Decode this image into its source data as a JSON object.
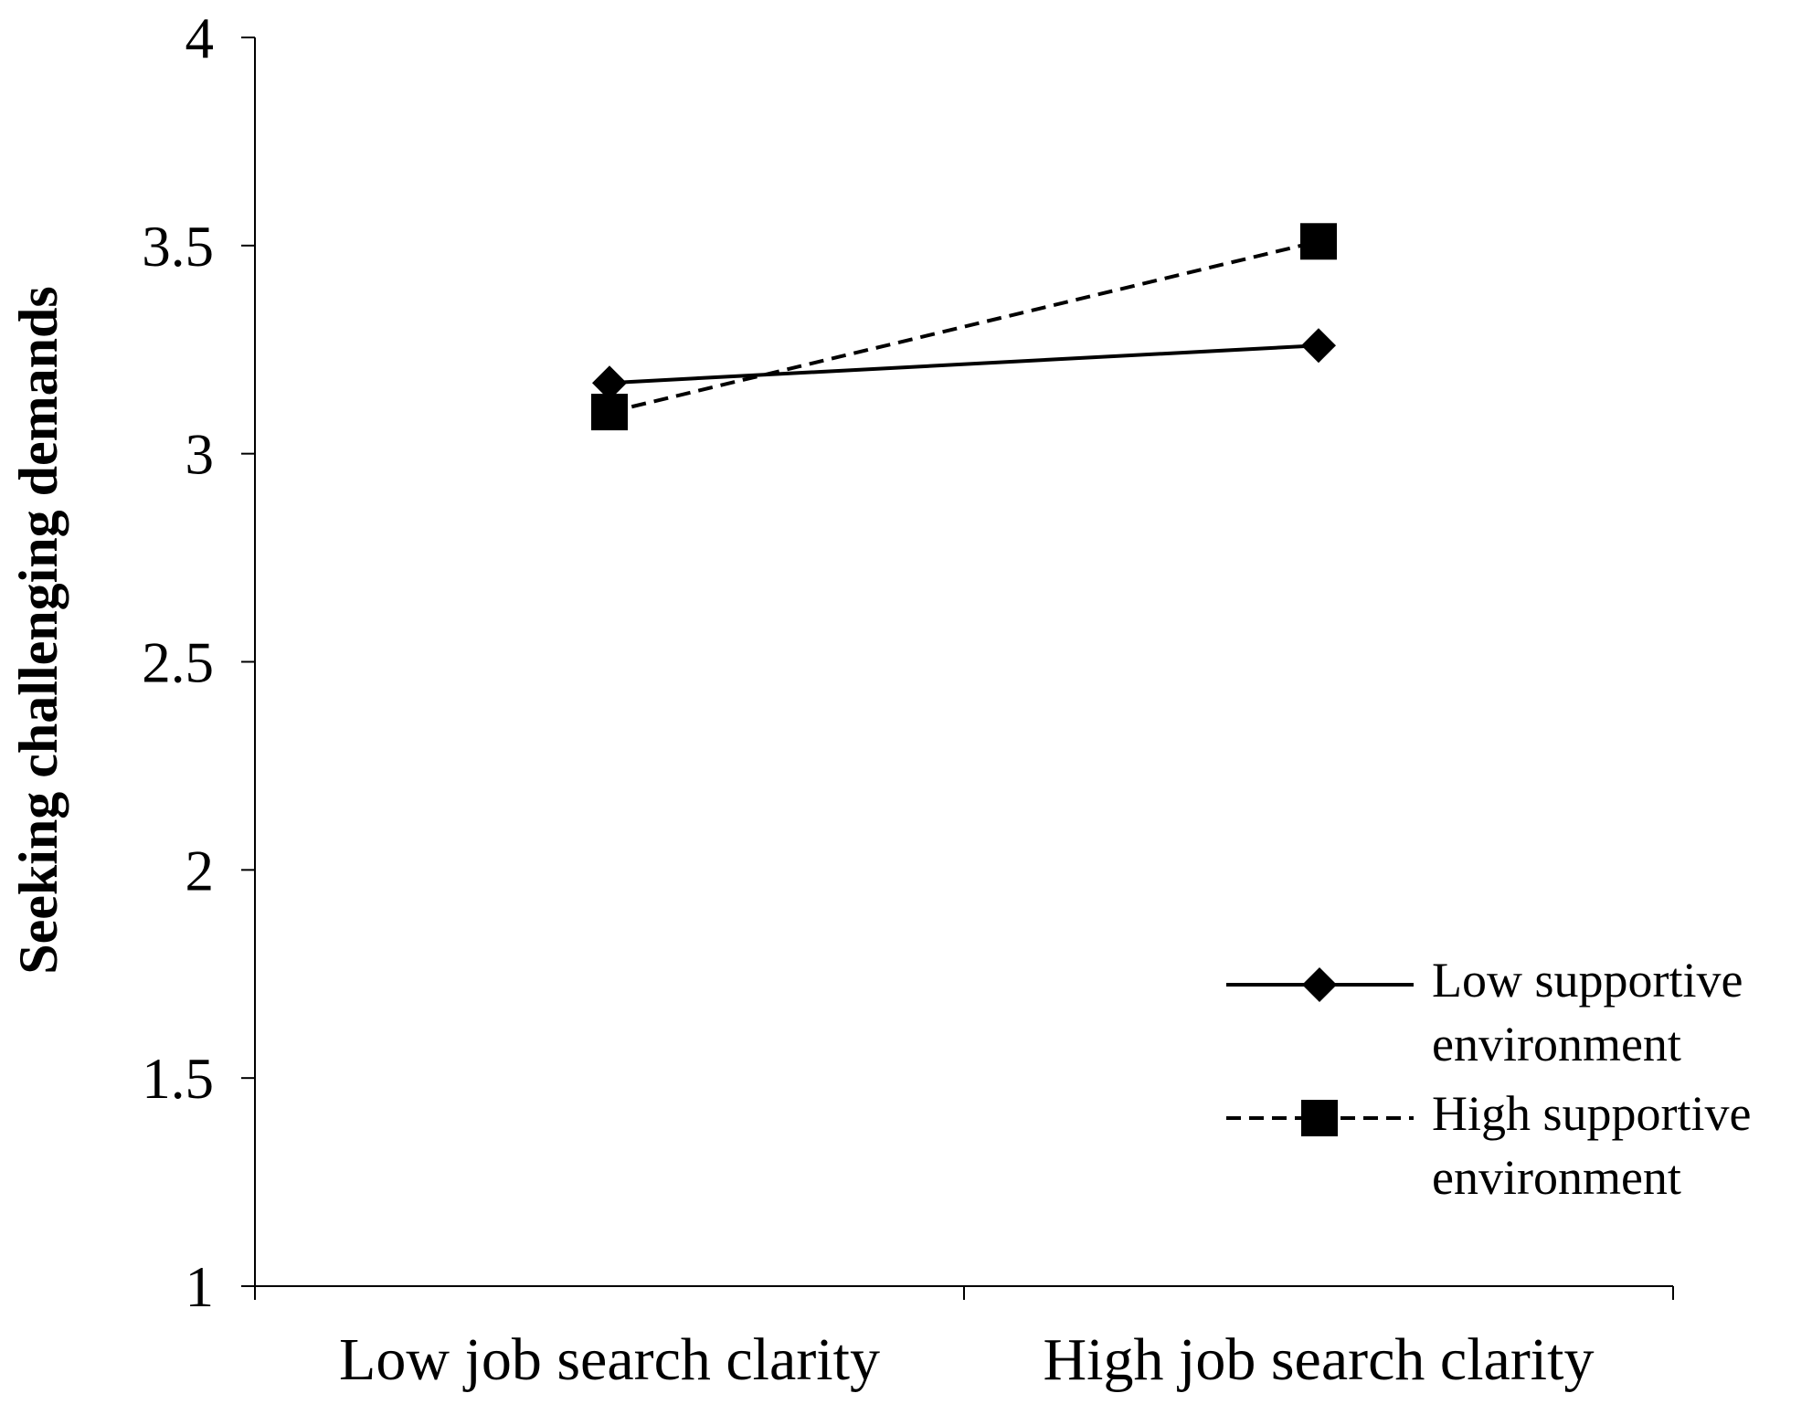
{
  "chart_data": {
    "type": "line",
    "y_label": "Seeking challenging demands",
    "categories": [
      "Low job search clarity",
      "High job search clarity"
    ],
    "series": [
      {
        "name": "Low supportive environment",
        "color": "#000000",
        "line_style": "solid",
        "marker": "diamond",
        "values": [
          3.17,
          3.26
        ]
      },
      {
        "name": "High supportive environment",
        "color": "#000000",
        "line_style": "dashed",
        "marker": "square",
        "values": [
          3.1,
          3.51
        ]
      }
    ],
    "ylim": [
      1,
      4
    ],
    "yticks": [
      1,
      1.5,
      2,
      2.5,
      3,
      3.5,
      4
    ],
    "grid": false,
    "legend": "lower right"
  }
}
